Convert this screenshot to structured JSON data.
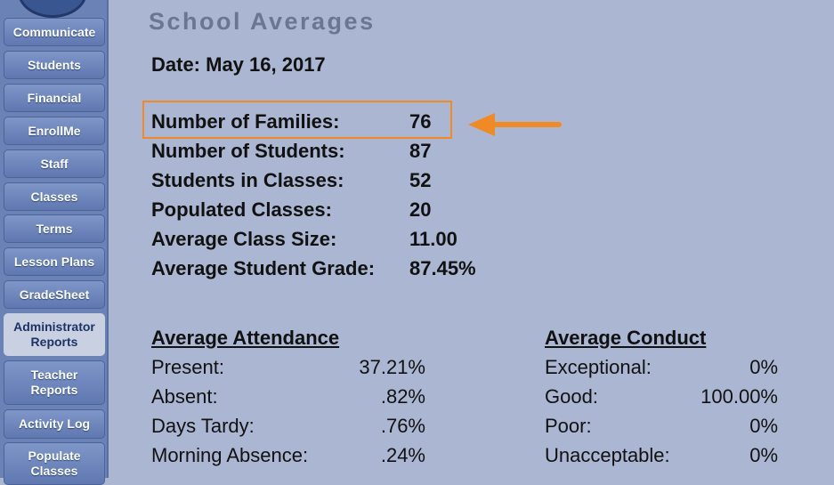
{
  "nav": {
    "items": [
      {
        "label": "Communicate"
      },
      {
        "label": "Students"
      },
      {
        "label": "Financial"
      },
      {
        "label": "EnrollMe"
      },
      {
        "label": "Staff"
      },
      {
        "label": "Classes"
      },
      {
        "label": "Terms"
      },
      {
        "label": "Lesson Plans"
      },
      {
        "label": "GradeSheet"
      },
      {
        "label_line1": "Administrator",
        "label_line2": "Reports"
      },
      {
        "label_line1": "Teacher",
        "label_line2": "Reports"
      },
      {
        "label": "Activity Log"
      },
      {
        "label_line1": "Populate",
        "label_line2": "Classes"
      }
    ]
  },
  "page": {
    "title": "School Averages",
    "date": "Date: May 16, 2017"
  },
  "stats": [
    {
      "label": "Number of Families:",
      "value": "76"
    },
    {
      "label": "Number of Students:",
      "value": "87"
    },
    {
      "label": "Students in Classes:",
      "value": "52"
    },
    {
      "label": "Populated Classes:",
      "value": "20"
    },
    {
      "label": "Average Class Size:",
      "value": "11.00"
    },
    {
      "label": "Average Student Grade:",
      "value": "87.45%"
    }
  ],
  "attendance": {
    "heading": "Average Attendance",
    "rows": [
      {
        "label": "Present:",
        "value": "37.21%"
      },
      {
        "label": "Absent:",
        "value": ".82%"
      },
      {
        "label": "Days Tardy:",
        "value": ".76%"
      },
      {
        "label": "Morning Absence:",
        "value": ".24%"
      }
    ]
  },
  "conduct": {
    "heading": "Average Conduct",
    "rows": [
      {
        "label": "Exceptional:",
        "value": "0%"
      },
      {
        "label": "Good:",
        "value": "100.00%"
      },
      {
        "label": "Poor:",
        "value": "0%"
      },
      {
        "label": "Unacceptable:",
        "value": "0%"
      }
    ]
  },
  "colors": {
    "highlight": "#f08a24",
    "background": "#aab6d2",
    "nav": "#6a82b5"
  },
  "annotation": {
    "icon": "arrow-left-icon"
  }
}
